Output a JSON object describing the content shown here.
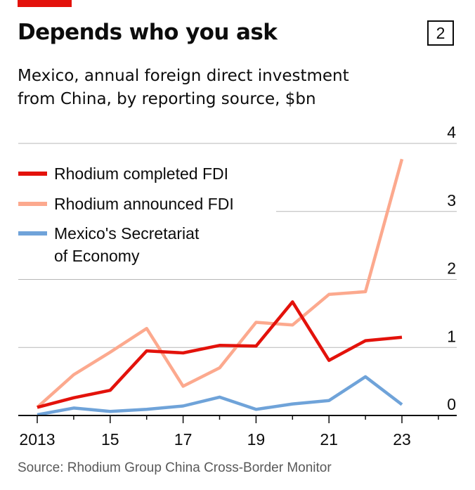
{
  "header": {
    "title": "Depends who you ask",
    "badge": "2",
    "subtitle_lines": [
      "Mexico, annual foreign direct investment",
      "from China, by reporting source, $bn"
    ]
  },
  "footer": {
    "source": "Source: Rhodium Group China Cross-Border Monitor"
  },
  "colors": {
    "accent": "#e3120b",
    "completed": "#e3120b",
    "announced": "#fca98e",
    "secretariat": "#6fa3d9",
    "grid": "#b7b7b7",
    "axis": "#0c0c0c"
  },
  "chart_data": {
    "type": "line",
    "title": "Depends who you ask",
    "subtitle": "Mexico, annual foreign direct investment from China, by reporting source, $bn",
    "x": [
      2013,
      2014,
      2015,
      2016,
      2017,
      2018,
      2019,
      2020,
      2021,
      2022,
      2023
    ],
    "x_tick_values": [
      2013,
      2015,
      2017,
      2019,
      2021,
      2023
    ],
    "x_tick_labels": [
      "2013",
      "15",
      "17",
      "19",
      "21",
      "23"
    ],
    "xlim": [
      2013,
      2024
    ],
    "ylim": [
      0,
      4
    ],
    "y_ticks": [
      0,
      1,
      2,
      3,
      4
    ],
    "y_axis_side": "right",
    "grid": true,
    "legend_position": "top-left",
    "series": [
      {
        "name": "Rhodium completed FDI",
        "color": "#e3120b",
        "values": [
          0.12,
          0.26,
          0.37,
          0.95,
          0.92,
          1.03,
          1.02,
          1.67,
          0.81,
          1.1,
          1.15
        ]
      },
      {
        "name": "Rhodium announced FDI",
        "color": "#fca98e",
        "values": [
          0.12,
          0.6,
          0.93,
          1.28,
          0.43,
          0.7,
          1.37,
          1.33,
          1.78,
          1.82,
          3.77
        ]
      },
      {
        "name": "Mexico's Secretariat of Economy",
        "legend_lines": [
          "Mexico's Secretariat",
          "of Economy"
        ],
        "color": "#6fa3d9",
        "values": [
          0.01,
          0.11,
          0.06,
          0.09,
          0.14,
          0.27,
          0.09,
          0.17,
          0.22,
          0.57,
          0.16
        ]
      }
    ]
  }
}
